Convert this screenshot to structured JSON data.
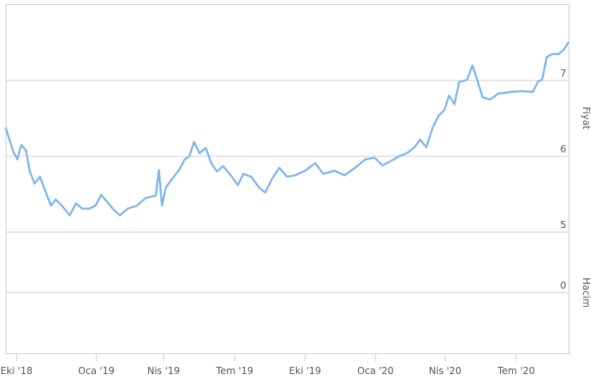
{
  "chart_data": {
    "type": "line",
    "y_axis_title": "Fiyat",
    "y2_axis_title": "Hacim",
    "x": [
      -14,
      -9,
      -4,
      1,
      6,
      12,
      17,
      23,
      30,
      37,
      44,
      50,
      58,
      68,
      76,
      84,
      93,
      101,
      108,
      115,
      123,
      132,
      142,
      154,
      165,
      178,
      182,
      186,
      191,
      198,
      208,
      215,
      221,
      227,
      234,
      242,
      249,
      256,
      264,
      274,
      283,
      290,
      300,
      310,
      318,
      326,
      336,
      346,
      356,
      369,
      382,
      392,
      407,
      419,
      433,
      446,
      458,
      468,
      479,
      489,
      499,
      509,
      516,
      524,
      532,
      540,
      547,
      553,
      560,
      566,
      576,
      583,
      589,
      596,
      606,
      616,
      632,
      647,
      660,
      667,
      672,
      678,
      685,
      693,
      700,
      706
    ],
    "values": [
      6.38,
      6.22,
      6.06,
      5.96,
      6.15,
      6.08,
      5.8,
      5.64,
      5.73,
      5.54,
      5.35,
      5.43,
      5.35,
      5.22,
      5.38,
      5.31,
      5.31,
      5.35,
      5.49,
      5.41,
      5.31,
      5.22,
      5.31,
      5.35,
      5.45,
      5.48,
      5.82,
      5.35,
      5.59,
      5.69,
      5.82,
      5.96,
      6.0,
      6.19,
      6.04,
      6.11,
      5.91,
      5.8,
      5.87,
      5.75,
      5.62,
      5.77,
      5.73,
      5.59,
      5.52,
      5.69,
      5.85,
      5.73,
      5.75,
      5.81,
      5.91,
      5.77,
      5.81,
      5.75,
      5.85,
      5.96,
      5.98,
      5.88,
      5.94,
      6.0,
      6.04,
      6.12,
      6.22,
      6.12,
      6.38,
      6.54,
      6.61,
      6.8,
      6.69,
      6.98,
      7.01,
      7.2,
      7.01,
      6.78,
      6.75,
      6.83,
      6.85,
      6.86,
      6.85,
      6.99,
      7.01,
      7.31,
      7.35,
      7.35,
      7.41,
      7.51
    ],
    "color": "#7cb5ec",
    "xlim": [
      -14,
      706
    ],
    "xticks": [
      {
        "value": 0,
        "label": "Eki '18"
      },
      {
        "value": 102,
        "label": "Oca '19"
      },
      {
        "value": 188,
        "label": "Nis '19"
      },
      {
        "value": 279,
        "label": "Tem '19"
      },
      {
        "value": 369,
        "label": "Eki '19"
      },
      {
        "value": 459,
        "label": "Oca '20"
      },
      {
        "value": 548,
        "label": "Nis '20"
      },
      {
        "value": 639,
        "label": "Tem '20"
      }
    ],
    "ylim": [
      5,
      8
    ],
    "yticks": [
      5,
      6,
      7
    ],
    "y2lim": [
      -1,
      1
    ],
    "y2ticks": [
      0
    ],
    "grid": true
  }
}
